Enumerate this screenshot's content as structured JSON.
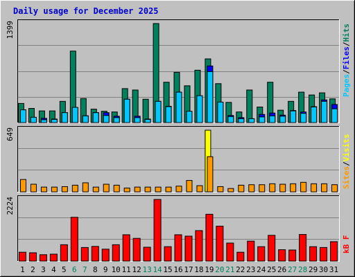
{
  "chart_data": {
    "type": "bar",
    "title": "Daily usage for December 2025",
    "categories": [
      "1",
      "2",
      "3",
      "4",
      "5",
      "6",
      "7",
      "8",
      "9",
      "10",
      "11",
      "12",
      "13",
      "14",
      "15",
      "16",
      "17",
      "18",
      "19",
      "20",
      "21",
      "22",
      "23",
      "24",
      "25",
      "26",
      "27",
      "28",
      "29",
      "30",
      "31"
    ],
    "weekend_days": [
      "6",
      "7",
      "13",
      "14",
      "20",
      "21",
      "27",
      "28"
    ],
    "panels": [
      {
        "id": "hits-files-pages",
        "max_label": "1399",
        "max": 1399,
        "series": [
          {
            "name": "Hits",
            "color": "#00805c",
            "values": [
              270,
              200,
              165,
              165,
              300,
              1010,
              340,
              190,
              160,
              150,
              480,
              460,
              330,
              1399,
              570,
              710,
              520,
              740,
              900,
              550,
              285,
              150,
              460,
              220,
              570,
              175,
              300,
              430,
              390,
              420,
              335
            ]
          },
          {
            "name": "Files",
            "color": "#0000ff",
            "values": [
              180,
              60,
              60,
              50,
              140,
              210,
              95,
              140,
              140,
              90,
              330,
              90,
              50,
              300,
              230,
              430,
              155,
              360,
              800,
              280,
              100,
              70,
              0,
              115,
              135,
              105,
              170,
              150,
              225,
              320,
              255
            ]
          },
          {
            "name": "Pages",
            "color": "#00c8ff",
            "values": [
              180,
              75,
              40,
              45,
              140,
              215,
              95,
              140,
              100,
              70,
              330,
              70,
              45,
              300,
              225,
              430,
              160,
              380,
              720,
              290,
              85,
              55,
              55,
              80,
              95,
              90,
              165,
              130,
              220,
              300,
              195
            ]
          }
        ]
      },
      {
        "id": "visits-sites",
        "max_label": "649",
        "max": 649,
        "series": [
          {
            "name": "Visits",
            "color": "#ffff00",
            "values": [
              0,
              0,
              0,
              0,
              0,
              0,
              0,
              0,
              0,
              0,
              0,
              0,
              0,
              0,
              0,
              0,
              0,
              0,
              649,
              0,
              0,
              0,
              0,
              0,
              0,
              0,
              0,
              0,
              0,
              0,
              0
            ]
          },
          {
            "name": "Sites",
            "color": "#ff9900",
            "values": [
              130,
              80,
              50,
              50,
              55,
              70,
              95,
              50,
              80,
              70,
              40,
              50,
              50,
              50,
              50,
              60,
              120,
              65,
              370,
              55,
              35,
              70,
              75,
              75,
              85,
              80,
              85,
              100,
              85,
              85,
              75
            ]
          }
        ]
      },
      {
        "id": "kbf",
        "max_label": "2224",
        "max": 2224,
        "series": [
          {
            "name": "kB F",
            "color": "#ff0000",
            "values": [
              320,
              300,
              230,
              250,
              590,
              1580,
              490,
              530,
              430,
              590,
              950,
              820,
              500,
              2224,
              520,
              950,
              900,
              1100,
              1690,
              1260,
              650,
              320,
              720,
              520,
              930,
              410,
              400,
              960,
              520,
              490,
              700
            ]
          }
        ]
      }
    ]
  },
  "legend": {
    "top": [
      "Pages",
      "/",
      "Files",
      "/",
      "Hits"
    ],
    "middle": [
      "Sites",
      "/",
      "Visits"
    ],
    "bottom": [
      "kB F"
    ]
  }
}
